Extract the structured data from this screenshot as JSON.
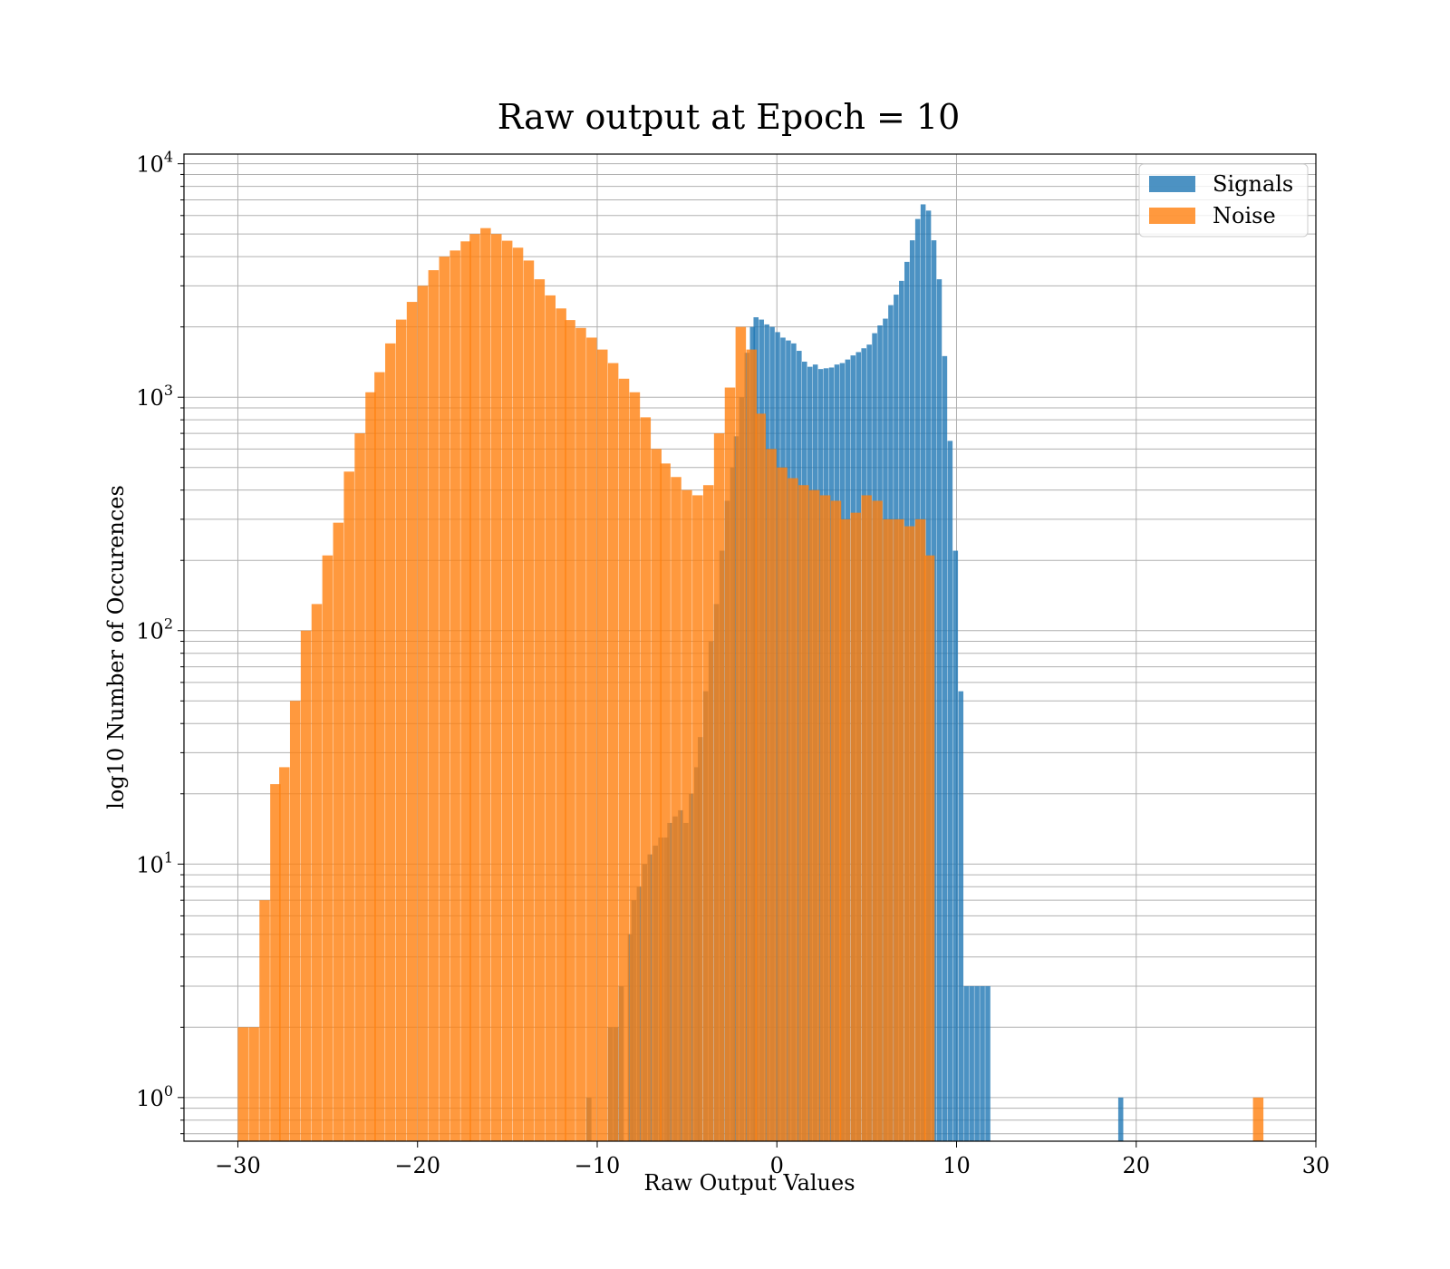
{
  "chart_data": {
    "type": "bar",
    "subtype": "histogram",
    "title": "Raw output at Epoch = 10",
    "xlabel": "Raw Output Values",
    "ylabel": "log10 Number of Occurences",
    "xlim": [
      -33,
      30
    ],
    "ylim": [
      0.65,
      11000
    ],
    "yscale": "log",
    "grid": true,
    "legend": "top-right",
    "x_ticks": [
      -30,
      -20,
      -10,
      0,
      10,
      20,
      30
    ],
    "x_tick_labels": [
      "−30",
      "−20",
      "−10",
      "0",
      "10",
      "20",
      "30"
    ],
    "y_ticks": [
      {
        "value": 1,
        "base": "10",
        "exp": "0"
      },
      {
        "value": 10,
        "base": "10",
        "exp": "1"
      },
      {
        "value": 100,
        "base": "10",
        "exp": "2"
      },
      {
        "value": 1000,
        "base": "10",
        "exp": "3"
      },
      {
        "value": 10000,
        "base": "10",
        "exp": "4"
      }
    ],
    "series": [
      {
        "name": "Signals",
        "color": "#1f77b4",
        "opacity": 0.8,
        "bin_width": 0.28,
        "bin_starts": [
          -10.6,
          -9.4,
          -9.1,
          -8.8,
          -8.3,
          -8.1,
          -7.8,
          -7.5,
          -7.2,
          -6.9,
          -6.6,
          -6.3,
          -6.1,
          -5.8,
          -5.5,
          -5.2,
          -4.9,
          -4.6,
          -4.4,
          -4.1,
          -3.8,
          -3.5,
          -3.2,
          -2.9,
          -2.6,
          -2.4,
          -2.1,
          -1.8,
          -1.5,
          -1.3,
          -1.0,
          -0.7,
          -0.4,
          -0.1,
          0.2,
          0.5,
          0.8,
          1.1,
          1.4,
          1.7,
          2.0,
          2.3,
          2.6,
          2.9,
          3.2,
          3.5,
          3.8,
          4.1,
          4.4,
          4.7,
          5.0,
          5.3,
          5.6,
          5.9,
          6.2,
          6.5,
          6.8,
          7.1,
          7.4,
          7.7,
          8.0,
          8.3,
          8.6,
          8.9,
          9.2,
          9.5,
          9.8,
          10.1,
          10.4,
          10.7,
          11.0,
          11.3,
          11.6,
          19.0
        ],
        "counts": [
          1,
          2,
          2,
          3,
          5,
          7,
          8,
          10,
          11,
          12,
          13,
          13,
          15,
          16,
          17,
          15,
          20,
          26,
          35,
          55,
          90,
          130,
          220,
          360,
          500,
          680,
          1000,
          1550,
          2000,
          2200,
          2150,
          2050,
          2000,
          1900,
          1800,
          1750,
          1700,
          1580,
          1420,
          1350,
          1380,
          1320,
          1330,
          1340,
          1380,
          1400,
          1450,
          1510,
          1560,
          1620,
          1680,
          1880,
          2030,
          2170,
          2480,
          2750,
          3150,
          3800,
          4700,
          5800,
          6700,
          6300,
          4700,
          3200,
          1500,
          650,
          220,
          55,
          3,
          3,
          3,
          3,
          3,
          1
        ]
      },
      {
        "name": "Noise",
        "color": "#ff7f0e",
        "opacity": 0.8,
        "bin_width": 0.58,
        "bin_starts": [
          -30.0,
          -29.4,
          -28.8,
          -28.2,
          -27.7,
          -27.1,
          -26.5,
          -25.9,
          -25.3,
          -24.7,
          -24.1,
          -23.5,
          -22.9,
          -22.4,
          -21.8,
          -21.2,
          -20.6,
          -20.0,
          -19.4,
          -18.8,
          -18.2,
          -17.6,
          -17.1,
          -16.5,
          -15.9,
          -15.3,
          -14.7,
          -14.1,
          -13.5,
          -12.9,
          -12.3,
          -11.8,
          -11.2,
          -10.6,
          -10.0,
          -9.4,
          -8.8,
          -8.2,
          -7.6,
          -7.0,
          -6.5,
          -5.9,
          -5.3,
          -4.7,
          -4.1,
          -3.5,
          -2.9,
          -2.3,
          -1.7,
          -1.2,
          -0.6,
          0.0,
          0.6,
          1.2,
          1.8,
          2.4,
          3.0,
          3.5,
          4.1,
          4.7,
          5.3,
          5.9,
          6.5,
          7.1,
          7.7,
          8.2,
          26.5
        ],
        "counts": [
          2,
          2,
          7,
          22,
          26,
          50,
          100,
          130,
          210,
          290,
          480,
          700,
          1050,
          1280,
          1700,
          2150,
          2560,
          3000,
          3500,
          4000,
          4250,
          4650,
          5000,
          5300,
          5000,
          4680,
          4370,
          3850,
          3200,
          2730,
          2400,
          2140,
          1980,
          1800,
          1600,
          1400,
          1200,
          1050,
          820,
          600,
          520,
          455,
          400,
          380,
          420,
          700,
          1100,
          2000,
          1600,
          850,
          600,
          500,
          450,
          420,
          400,
          380,
          360,
          300,
          320,
          380,
          360,
          300,
          300,
          280,
          300,
          210,
          1
        ]
      }
    ]
  }
}
